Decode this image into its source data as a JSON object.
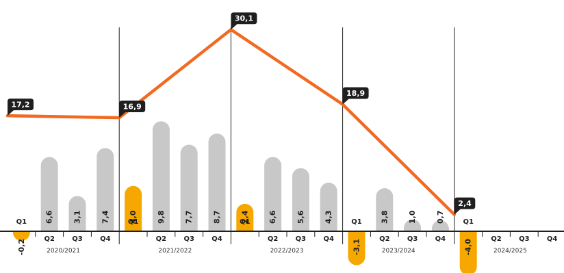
{
  "colors": {
    "bar_default": "#c8c8c8",
    "bar_highlight": "#f7a800",
    "line": "#f26a21",
    "label_bg": "#1f1f1f",
    "axis": "#1f1f1f"
  },
  "chart_data": {
    "type": "bar",
    "categories": [
      "Q1",
      "Q2",
      "Q3",
      "Q4",
      "Q1",
      "Q2",
      "Q3",
      "Q4",
      "Q1",
      "Q2",
      "Q3",
      "Q4",
      "Q1",
      "Q2",
      "Q3",
      "Q4",
      "Q1",
      "Q2",
      "Q3",
      "Q4"
    ],
    "years": [
      "2020/2021",
      "2021/2022",
      "2022/2023",
      "2023/2024",
      "2024/2025"
    ],
    "series": [
      {
        "type": "bar",
        "values": [
          -0.2,
          6.6,
          3.1,
          7.4,
          4.0,
          9.8,
          7.7,
          8.7,
          2.4,
          6.6,
          5.6,
          4.3,
          -3.1,
          3.8,
          1.0,
          0.7,
          -4.0,
          null,
          null,
          null
        ],
        "value_labels": [
          "-0,2",
          "6,6",
          "3,1",
          "7,4",
          "4,0",
          "9,8",
          "7,7",
          "8,7",
          "2,4",
          "6,6",
          "5,6",
          "4,3",
          "-3,1",
          "3,8",
          "1,0",
          "0,7",
          "-4,0",
          "",
          "",
          ""
        ],
        "highlight": [
          true,
          false,
          false,
          false,
          true,
          false,
          false,
          false,
          true,
          false,
          false,
          false,
          true,
          false,
          false,
          false,
          true,
          false,
          false,
          false
        ]
      },
      {
        "type": "line",
        "x": [
          "2020/2021",
          "2021/2022",
          "2022/2023",
          "2023/2024",
          "2024/2025"
        ],
        "values": [
          17.2,
          16.9,
          30.1,
          18.9,
          2.4
        ],
        "value_labels": [
          "17,2",
          "16,9",
          "30,1",
          "18,9",
          "2,4"
        ]
      }
    ],
    "grid": false,
    "legend": "none"
  }
}
